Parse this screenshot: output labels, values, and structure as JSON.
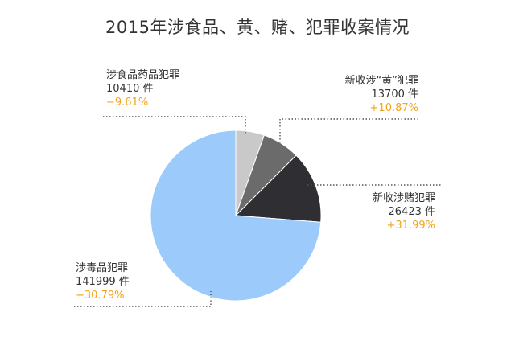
{
  "chart_data": {
    "type": "pie",
    "title": "2015年涉食品、黄、赌、犯罪收案情况",
    "unit": "件",
    "colors": {
      "food_drug": "#c9c9c9",
      "porn": "#6b6b6b",
      "gambling": "#2f2f33",
      "drug": "#9ccbfb",
      "leader": "#555555",
      "growth": "#f2a51a"
    },
    "slices": [
      {
        "key": "food_drug",
        "label": "涉食品药品犯罪",
        "value": 10410,
        "value_text": "10410 件",
        "change": "−9.61%"
      },
      {
        "key": "porn",
        "label": "新收涉“黄”犯罪",
        "value": 13700,
        "value_text": "13700 件",
        "change": "+10.87%"
      },
      {
        "key": "gambling",
        "label": "新收涉赌犯罪",
        "value": 26423,
        "value_text": "26423 件",
        "change": "+31.99%"
      },
      {
        "key": "drug",
        "label": "涉毒品犯罪",
        "value": 141999,
        "value_text": "141999 件",
        "change": "+30.79%"
      }
    ]
  }
}
